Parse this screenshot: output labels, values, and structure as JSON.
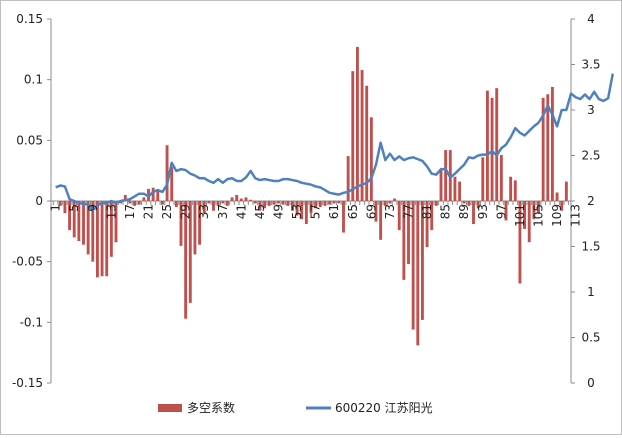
{
  "chart_data": {
    "type": "bar+line",
    "title": "",
    "x_tick_labels": [
      "1",
      "5",
      "9",
      "13",
      "17",
      "21",
      "25",
      "29",
      "33",
      "37",
      "41",
      "45",
      "49",
      "53",
      "57",
      "61",
      "65",
      "69",
      "73",
      "77",
      "81",
      "85",
      "89",
      "93",
      "97",
      "101",
      "105",
      "109",
      "113"
    ],
    "left_axis": {
      "min": -0.15,
      "max": 0.15,
      "ticks": [
        "-0.15",
        "-0.1",
        "-0.05",
        "0",
        "0.05",
        "0.1",
        "0.15"
      ]
    },
    "right_axis": {
      "min": 0,
      "max": 4,
      "ticks": [
        "0",
        "0.5",
        "1",
        "1.5",
        "2",
        "2.5",
        "3",
        "3.5",
        "4"
      ]
    },
    "legend_position": "bottom",
    "series": [
      {
        "name": "多空系数",
        "kind": "bar",
        "axis": "left",
        "color": "#c0504d",
        "values": [
          0.0,
          -0.004,
          -0.01,
          -0.024,
          -0.03,
          -0.033,
          -0.036,
          -0.044,
          -0.05,
          -0.063,
          -0.062,
          -0.062,
          -0.046,
          -0.034,
          -0.002,
          0.005,
          -0.002,
          -0.004,
          -0.003,
          0.003,
          0.01,
          0.011,
          0.008,
          -0.003,
          0.046,
          0.028,
          -0.005,
          -0.037,
          -0.097,
          -0.084,
          -0.044,
          -0.036,
          -0.01,
          -0.002,
          -0.008,
          -0.004,
          -0.002,
          -0.004,
          0.003,
          0.005,
          0.002,
          0.003,
          0.001,
          -0.002,
          -0.008,
          -0.006,
          -0.004,
          -0.003,
          -0.002,
          -0.003,
          -0.004,
          -0.008,
          -0.012,
          -0.015,
          -0.019,
          -0.01,
          -0.006,
          -0.005,
          -0.004,
          -0.003,
          -0.002,
          -0.002,
          -0.026,
          0.037,
          0.107,
          0.127,
          0.108,
          0.095,
          0.069,
          -0.017,
          -0.032,
          -0.004,
          -0.002,
          0.002,
          -0.024,
          -0.065,
          -0.052,
          -0.106,
          -0.119,
          -0.098,
          -0.038,
          -0.024,
          -0.004,
          0.026,
          0.042,
          0.042,
          0.02,
          0.016,
          -0.002,
          -0.004,
          -0.019,
          -0.006,
          0.036,
          0.091,
          0.085,
          0.093,
          0.038,
          -0.016,
          0.02,
          0.017,
          -0.068,
          -0.023,
          -0.034,
          -0.015,
          -0.01,
          0.085,
          0.088,
          0.094,
          0.007,
          -0.008,
          0.016
        ]
      },
      {
        "name": "600220 江苏阳光",
        "kind": "line",
        "axis": "right",
        "color": "#4f81bd",
        "values": [
          2.15,
          2.17,
          2.16,
          2.02,
          2.0,
          1.98,
          1.97,
          1.96,
          1.9,
          1.95,
          1.98,
          1.98,
          2.0,
          1.98,
          2.0,
          2.01,
          2.02,
          2.05,
          2.08,
          2.08,
          2.05,
          2.1,
          2.12,
          2.1,
          2.18,
          2.42,
          2.33,
          2.35,
          2.34,
          2.3,
          2.28,
          2.25,
          2.25,
          2.22,
          2.2,
          2.24,
          2.2,
          2.24,
          2.25,
          2.22,
          2.22,
          2.26,
          2.33,
          2.25,
          2.23,
          2.24,
          2.23,
          2.22,
          2.22,
          2.24,
          2.24,
          2.23,
          2.22,
          2.2,
          2.19,
          2.18,
          2.16,
          2.15,
          2.12,
          2.09,
          2.08,
          2.07,
          2.09,
          2.1,
          2.13,
          2.16,
          2.18,
          2.2,
          2.25,
          2.4,
          2.64,
          2.45,
          2.52,
          2.45,
          2.49,
          2.45,
          2.47,
          2.48,
          2.46,
          2.44,
          2.38,
          2.3,
          2.29,
          2.35,
          2.35,
          2.26,
          2.3,
          2.35,
          2.4,
          2.48,
          2.47,
          2.5,
          2.51,
          2.51,
          2.55,
          2.5,
          2.58,
          2.62,
          2.7,
          2.8,
          2.75,
          2.72,
          2.77,
          2.82,
          2.86,
          2.94,
          3.05,
          2.95,
          2.82,
          3.0,
          3.0,
          3.18,
          3.14,
          3.12,
          3.17,
          3.12,
          3.2,
          3.12,
          3.1,
          3.13,
          3.4
        ]
      }
    ]
  }
}
